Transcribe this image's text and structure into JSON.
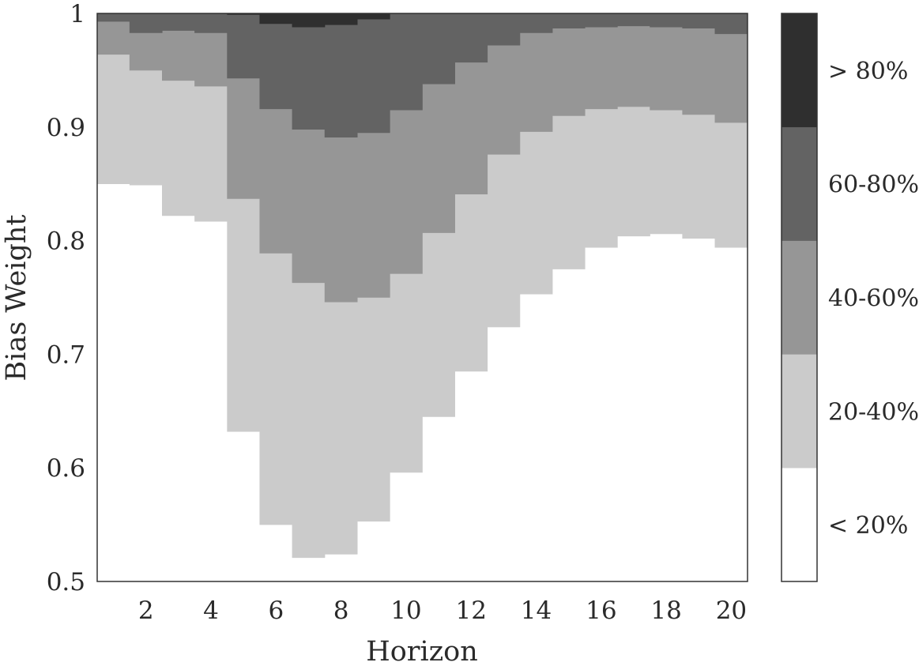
{
  "chart_data": {
    "type": "heatmap",
    "title": "",
    "xlabel": "Horizon",
    "ylabel": "Bias Weight",
    "xlim": [
      1,
      20
    ],
    "ylim": [
      0.5,
      1.0
    ],
    "x": [
      1,
      2,
      3,
      4,
      5,
      6,
      7,
      8,
      9,
      10,
      11,
      12,
      13,
      14,
      15,
      16,
      17,
      18,
      19,
      20
    ],
    "x_ticks": [
      2,
      4,
      6,
      8,
      10,
      12,
      14,
      16,
      18,
      20
    ],
    "y_ticks": [
      0.5,
      0.6,
      0.7,
      0.8,
      0.9,
      1.0
    ],
    "y_tick_labels": [
      "0.5",
      "0.6",
      "0.7",
      "0.8",
      "0.9",
      "1"
    ],
    "x_tick_labels": [
      "2",
      "4",
      "6",
      "8",
      "10",
      "12",
      "14",
      "16",
      "18",
      "20"
    ],
    "grid": false,
    "legend_position": "right",
    "levels": [
      {
        "label": "< 20%",
        "color": "#ffffff"
      },
      {
        "label": "20-40%",
        "color": "#cbcbcb"
      },
      {
        "label": "40-60%",
        "color": "#969696"
      },
      {
        "label": "60-80%",
        "color": "#636363"
      },
      {
        "label": "> 80%",
        "color": "#2f2f2f"
      }
    ],
    "boundaries": [
      {
        "name": "20%",
        "values": [
          0.85,
          0.849,
          0.822,
          0.817,
          0.632,
          0.55,
          0.521,
          0.524,
          0.553,
          0.596,
          0.645,
          0.685,
          0.724,
          0.753,
          0.775,
          0.794,
          0.804,
          0.806,
          0.802,
          0.794
        ]
      },
      {
        "name": "40%",
        "values": [
          0.964,
          0.95,
          0.941,
          0.936,
          0.837,
          0.789,
          0.763,
          0.746,
          0.75,
          0.771,
          0.807,
          0.841,
          0.876,
          0.896,
          0.91,
          0.916,
          0.918,
          0.915,
          0.911,
          0.904
        ]
      },
      {
        "name": "60%",
        "values": [
          0.993,
          0.983,
          0.985,
          0.983,
          0.943,
          0.916,
          0.898,
          0.891,
          0.895,
          0.915,
          0.938,
          0.957,
          0.972,
          0.983,
          0.987,
          0.988,
          0.989,
          0.988,
          0.987,
          0.982
        ]
      },
      {
        "name": "80%",
        "values": [
          1.0,
          1.0,
          1.0,
          1.0,
          0.999,
          0.991,
          0.988,
          0.99,
          0.995,
          1.0,
          1.0,
          1.0,
          1.0,
          1.0,
          1.0,
          1.0,
          1.0,
          1.0,
          1.0,
          1.0
        ]
      }
    ]
  }
}
